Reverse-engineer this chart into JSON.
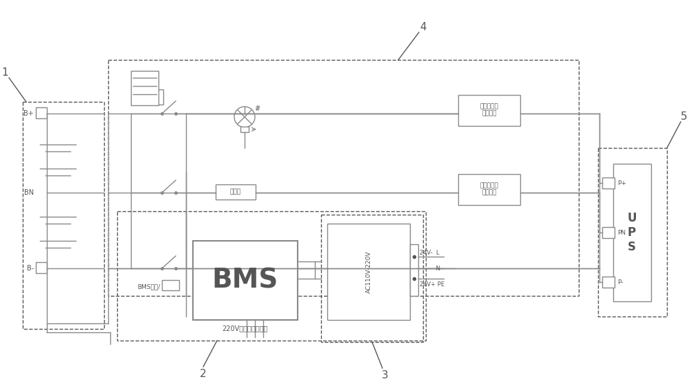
{
  "bg": "#ffffff",
  "lc": "#888888",
  "dc": "#555555",
  "fw": 10.0,
  "fh": 5.61,
  "dpi": 100,
  "label1": "1",
  "label2": "2",
  "label3": "3",
  "label4": "4",
  "label5": "5",
  "bplus": "B+",
  "bn": "BN",
  "bminus": "B-",
  "bms_wake": "BMS唤醒/",
  "bms_text": "BMS",
  "v220_text": "220V输入，信号检测",
  "charge_text": "充放电控制\n保护单元",
  "ups_text": "U\nP\nS",
  "pplus": "P+",
  "pn": "PN",
  "pminus": "P-",
  "v24ml": "24V-  L",
  "v24n": "         N",
  "v24pp": "24V+ PE",
  "ac_text": "AC110V-220V",
  "fuse_text": "分压器",
  "hash": "#"
}
